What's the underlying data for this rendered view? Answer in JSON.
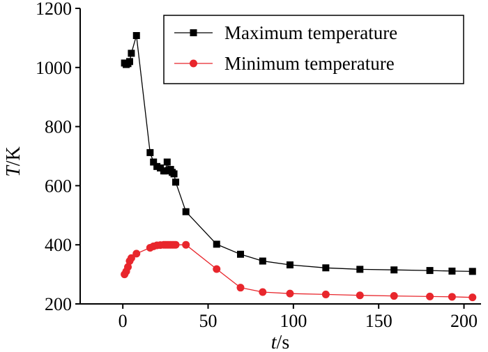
{
  "chart_data": {
    "type": "line",
    "title": "",
    "xlabel": {
      "italic": "t",
      "unit": "/s"
    },
    "ylabel": {
      "italic": "T",
      "unit": "/K"
    },
    "xlim": [
      -25,
      210
    ],
    "ylim": [
      200,
      1200
    ],
    "xticks": [
      0,
      50,
      100,
      150,
      200
    ],
    "yticks": [
      200,
      400,
      600,
      800,
      1000,
      1200
    ],
    "legend_position": "top-right",
    "grid": false,
    "series": [
      {
        "name": "Maximum temperature",
        "color": "#000000",
        "marker": "square",
        "x": [
          1,
          2,
          3,
          4,
          5,
          8,
          16,
          18,
          20,
          22,
          24,
          25,
          26,
          27,
          28,
          29,
          30,
          31,
          37,
          55,
          69,
          82,
          98,
          119,
          139,
          159,
          180,
          193,
          205
        ],
        "y": [
          1015,
          1010,
          1013,
          1020,
          1048,
          1108,
          712,
          680,
          665,
          660,
          650,
          650,
          680,
          652,
          655,
          645,
          640,
          612,
          512,
          402,
          368,
          345,
          332,
          322,
          317,
          315,
          313,
          311,
          310
        ]
      },
      {
        "name": "Minimum temperature",
        "color": "#e8262c",
        "marker": "circle",
        "x": [
          1,
          2,
          3,
          4,
          5,
          8,
          16,
          18,
          20,
          22,
          24,
          25,
          26,
          27,
          28,
          29,
          30,
          31,
          37,
          55,
          69,
          82,
          98,
          119,
          139,
          159,
          180,
          193,
          205
        ],
        "y": [
          300,
          310,
          325,
          345,
          355,
          370,
          390,
          395,
          398,
          399,
          400,
          400,
          400,
          400,
          400,
          400,
          400,
          400,
          400,
          318,
          255,
          240,
          235,
          232,
          229,
          227,
          225,
          224,
          222
        ]
      }
    ]
  }
}
